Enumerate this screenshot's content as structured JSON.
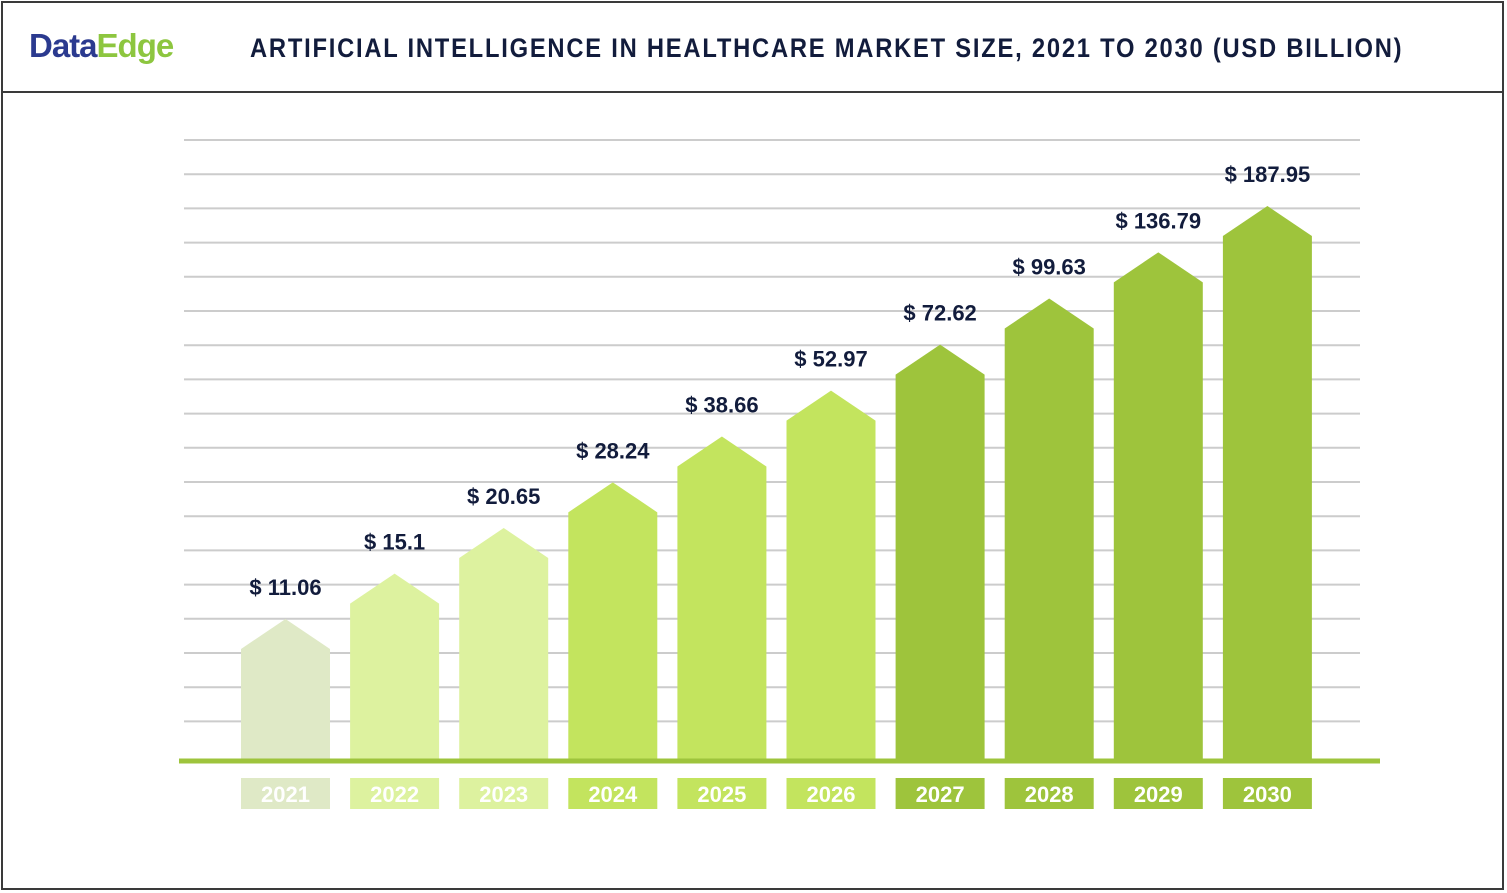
{
  "logo": {
    "part1": "Data",
    "part2": "Edge"
  },
  "title": "ARTIFICIAL INTELLIGENCE IN HEALTHCARE MARKET SIZE, 2021 TO 2030 (USD BILLION)",
  "colors": {
    "bars": [
      "#dfe9c6",
      "#ddf29f",
      "#ddf29f",
      "#c3e45e",
      "#c3e45e",
      "#c3e45e",
      "#9ec43c",
      "#9ec43c",
      "#9ec43c",
      "#9ec43c"
    ],
    "label_text": "#121c3c",
    "grid": "#cccccc",
    "baseline": "#9ec43c"
  },
  "chart_data": {
    "type": "bar",
    "title": "ARTIFICIAL INTELLIGENCE IN HEALTHCARE MARKET SIZE, 2021 TO 2030 (USD BILLION)",
    "categories": [
      "2021",
      "2022",
      "2023",
      "2024",
      "2025",
      "2026",
      "2027",
      "2028",
      "2029",
      "2030"
    ],
    "values": [
      11.06,
      15.1,
      20.65,
      28.24,
      38.66,
      52.97,
      72.62,
      99.63,
      136.79,
      187.95
    ],
    "value_labels": [
      "$ 11.06",
      "$ 15.1",
      "$ 20.65",
      "$ 28.24",
      "$ 38.66",
      "$ 52.97",
      "$ 72.62",
      "$ 99.63",
      "$ 136.79",
      "$ 187.95"
    ],
    "xlabel": "",
    "ylabel": "",
    "grid": true,
    "legend": "none"
  }
}
